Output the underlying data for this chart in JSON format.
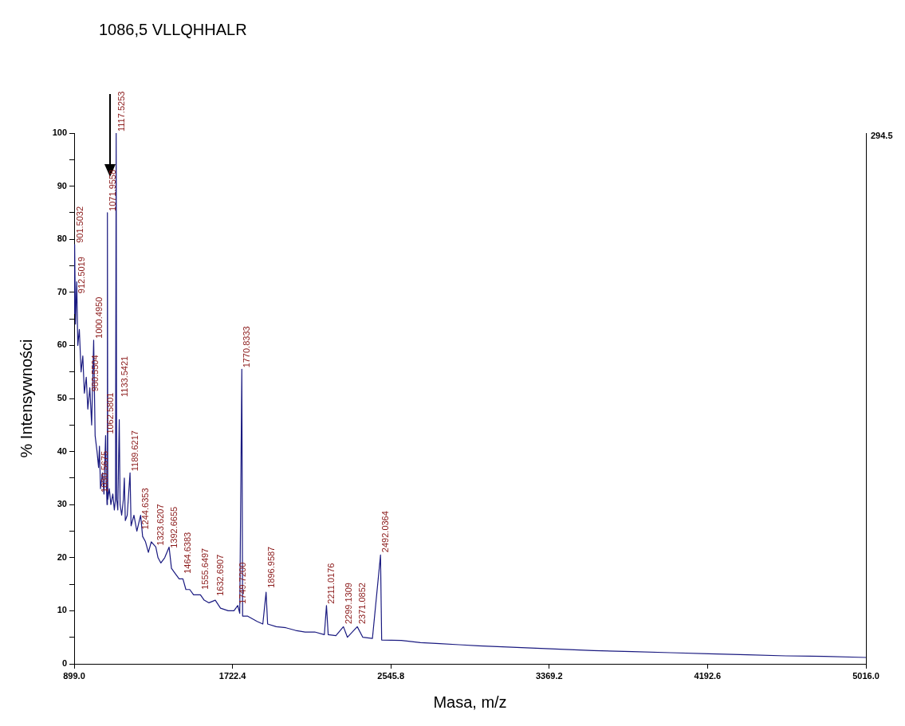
{
  "chart_data": {
    "type": "line",
    "xlabel": "Masa, m/z",
    "ylabel": "% Intensywności",
    "color": "#1a1a80",
    "marker": "none",
    "grid": false,
    "legend": false,
    "xlim": [
      899.0,
      5016.0
    ],
    "xticks": [
      {
        "value": 899.0,
        "label": "899.0"
      },
      {
        "value": 1722.4,
        "label": "1722.4"
      },
      {
        "value": 2545.8,
        "label": "2545.8"
      },
      {
        "value": 3369.2,
        "label": "3369.2"
      },
      {
        "value": 4192.6,
        "label": "4192.6"
      },
      {
        "value": 5016.0,
        "label": "5016.0"
      }
    ],
    "ylim": [
      0,
      100
    ],
    "yticks": [
      0,
      {
        "value": 5,
        "label": null
      },
      10,
      {
        "value": 15,
        "label": null
      },
      20,
      {
        "value": 25,
        "label": null
      },
      30,
      {
        "value": 35,
        "label": null
      },
      40,
      {
        "value": 45,
        "label": null
      },
      50,
      {
        "value": 55,
        "label": null
      },
      60,
      {
        "value": 65,
        "label": null
      },
      70,
      {
        "value": 75,
        "label": null
      },
      80,
      {
        "value": 85,
        "label": null
      },
      90,
      {
        "value": 95,
        "label": null
      },
      100
    ],
    "x": [
      899,
      901.5,
      906,
      912.5,
      918,
      926,
      935,
      944,
      952,
      962,
      970,
      980.5,
      990,
      1000.5,
      1008,
      1018,
      1026,
      1030.5,
      1036,
      1046,
      1054,
      1062.5,
      1066,
      1070,
      1071.9,
      1074,
      1082,
      1090,
      1100,
      1108,
      1114,
      1117.5,
      1120,
      1126,
      1133.5,
      1138,
      1146,
      1155,
      1160,
      1165,
      1175,
      1189.6,
      1195,
      1210,
      1225,
      1244.6,
      1255,
      1270,
      1285,
      1300,
      1323.6,
      1335,
      1350,
      1370,
      1392.7,
      1405,
      1425,
      1445,
      1464.6,
      1480,
      1500,
      1520,
      1555.6,
      1575,
      1600,
      1632.7,
      1660,
      1700,
      1730,
      1749.7,
      1760,
      1770.8,
      1775,
      1800,
      1850,
      1880,
      1897,
      1905,
      1950,
      2000,
      2050,
      2100,
      2150,
      2200,
      2211,
      2220,
      2260,
      2299.1,
      2320,
      2371.1,
      2400,
      2450,
      2492,
      2498,
      2600,
      2700,
      2800,
      2900,
      3000,
      3200,
      3400,
      3600,
      3800,
      4000,
      4200,
      4400,
      4600,
      4800,
      5016
    ],
    "values": [
      66,
      79,
      64,
      72,
      60,
      63,
      55,
      58,
      51,
      54,
      48,
      52,
      45,
      61,
      43,
      40,
      37,
      41,
      33,
      36,
      32,
      43,
      34,
      30,
      85,
      31,
      33,
      30,
      32,
      29,
      31,
      100,
      31,
      29,
      46,
      30,
      28,
      31,
      35,
      27,
      28,
      36,
      26,
      28,
      25,
      28,
      24,
      23,
      21,
      23,
      22,
      20,
      19,
      20,
      22,
      18,
      17,
      16,
      16,
      14,
      14,
      13,
      13,
      12,
      11.5,
      12,
      10.5,
      10,
      10,
      11,
      9.5,
      55.5,
      9,
      9,
      8,
      7.5,
      13.5,
      7.5,
      7,
      6.8,
      6.3,
      6,
      6,
      5.5,
      11,
      5.5,
      5.3,
      7,
      5,
      7,
      5,
      4.8,
      20.5,
      4.5,
      4.4,
      4,
      3.8,
      3.6,
      3.4,
      3.1,
      2.8,
      2.5,
      2.3,
      2.1,
      1.9,
      1.7,
      1.5,
      1.4,
      1.2
    ],
    "annotations": [
      "1086,5 VLLQHHALR",
      "294.5",
      {
        "text": "912.5019",
        "x": 912.5,
        "y": 69.5
      },
      {
        "text": "901.5032",
        "x": 901.5,
        "y": 79
      },
      {
        "text": "1000.4950",
        "x": 1000.5,
        "y": 61
      },
      {
        "text": "980.5504",
        "x": 980.5,
        "y": 51
      },
      {
        "text": "1062.5801",
        "x": 1062.6,
        "y": 43
      },
      {
        "text": "1030.5675",
        "x": 1030.6,
        "y": 32
      },
      {
        "text": "1071.9558",
        "x": 1071.9,
        "y": 85
      },
      {
        "text": "1117.5253",
        "x": 1117.5,
        "y": 100
      },
      {
        "text": "1133.5421",
        "x": 1133.5,
        "y": 50
      },
      {
        "text": "1189.6217",
        "x": 1189.6,
        "y": 36
      },
      {
        "text": "1244.6353",
        "x": 1244.6,
        "y": 25
      },
      {
        "text": "1323.6207",
        "x": 1323.6,
        "y": 22
      },
      {
        "text": "1392.6655",
        "x": 1392.7,
        "y": 21.5
      },
      {
        "text": "1464.6383",
        "x": 1464.6,
        "y": 16.7
      },
      {
        "text": "1555.6497",
        "x": 1555.6,
        "y": 13.7
      },
      {
        "text": "1632.6907",
        "x": 1632.7,
        "y": 12.5
      },
      {
        "text": "1749.7200",
        "x": 1749.7,
        "y": 11
      },
      {
        "text": "1770.8333",
        "x": 1770.8,
        "y": 55.5
      },
      {
        "text": "1896.9587",
        "x": 1897,
        "y": 14
      },
      {
        "text": "2211.0176",
        "x": 2211,
        "y": 11
      },
      {
        "text": "2299.1309",
        "x": 2299.1,
        "y": 7.2
      },
      {
        "text": "2371.0852",
        "x": 2371.1,
        "y": 7.2
      },
      {
        "text": "2492.0364",
        "x": 2492,
        "y": 20.7
      }
    ]
  }
}
